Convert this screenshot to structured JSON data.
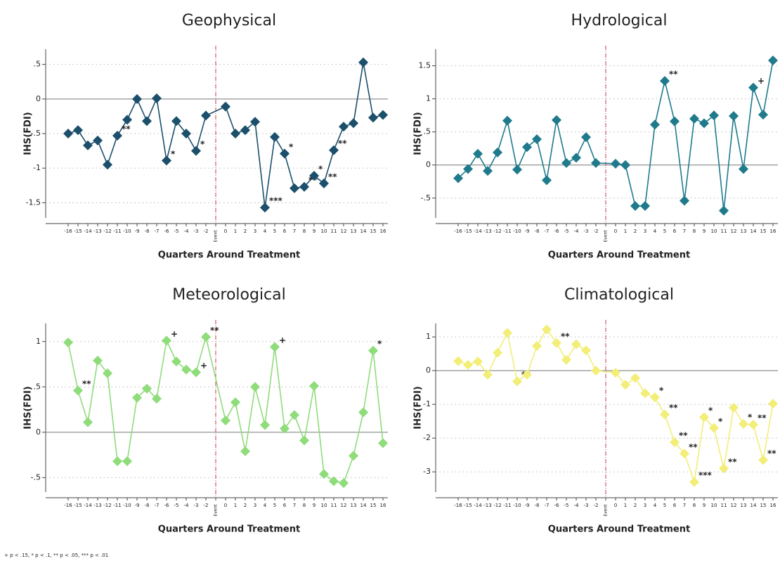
{
  "chart_data": [
    {
      "type": "line",
      "title": "Geophysical",
      "x_label": "Quarters Around Treatment",
      "y_label": "IHS(FDI)",
      "x": [
        -16,
        -15,
        -14,
        -13,
        -12,
        -11,
        -10,
        -9,
        -8,
        -7,
        -6,
        -5,
        -4,
        -3,
        -2,
        0,
        1,
        2,
        3,
        4,
        5,
        6,
        7,
        8,
        9,
        10,
        11,
        12,
        13,
        14,
        15,
        16
      ],
      "series": [
        {
          "name": "Geophysical",
          "color": "#1b4f6b",
          "values": [
            -0.5,
            -0.45,
            -0.67,
            -0.6,
            -0.95,
            -0.53,
            -0.3,
            0,
            -0.32,
            0.01,
            -0.89,
            -0.32,
            -0.5,
            -0.75,
            -0.24,
            -0.11,
            -0.5,
            -0.45,
            -0.33,
            -1.57,
            -0.55,
            -0.79,
            -1.29,
            -1.27,
            -1.11,
            -1.22,
            -0.74,
            -0.4,
            -0.35,
            0.53,
            -0.27,
            -0.23
          ],
          "value_labels": [
            null,
            null,
            null,
            null,
            null,
            "**",
            null,
            null,
            null,
            null,
            "*",
            null,
            null,
            "*",
            null,
            null,
            null,
            null,
            null,
            "***",
            null,
            "*",
            null,
            "**",
            "*",
            "**",
            "**",
            null,
            null,
            null,
            null,
            null
          ]
        }
      ],
      "xlim": [
        -16.5,
        16.5
      ],
      "xticks": [
        -16,
        -15,
        -14,
        -13,
        -12,
        -11,
        -10,
        -9,
        -8,
        -7,
        -6,
        -5,
        -4,
        -3,
        -2,
        {
          "value": -1,
          "label": "Event"
        },
        0,
        1,
        2,
        3,
        4,
        5,
        6,
        7,
        8,
        9,
        10,
        11,
        12,
        13,
        14,
        15,
        16
      ],
      "ylim": [
        -1.72,
        0.72
      ],
      "yticks": [
        {
          "value": -1.5,
          "label": "-1.5"
        },
        -1,
        {
          "value": -0.5,
          "label": "-.5"
        },
        0,
        {
          "value": 0.5,
          "label": ".5"
        }
      ],
      "grid": true
    },
    {
      "type": "line",
      "title": "Hydrological",
      "x_label": "Quarters Around Treatment",
      "y_label": "IHS(FDI)",
      "x": [
        -16,
        -15,
        -14,
        -13,
        -12,
        -11,
        -10,
        -9,
        -8,
        -7,
        -6,
        -5,
        -4,
        -3,
        -2,
        0,
        1,
        2,
        3,
        4,
        5,
        6,
        7,
        8,
        9,
        10,
        11,
        12,
        13,
        14,
        15,
        16
      ],
      "series": [
        {
          "name": "Hydrological",
          "color": "#1f7a8c",
          "values": [
            -0.2,
            -0.06,
            0.17,
            -0.09,
            0.19,
            0.67,
            -0.07,
            0.27,
            0.39,
            -0.23,
            0.68,
            0.03,
            0.11,
            0.42,
            0.03,
            0.02,
            0,
            -0.62,
            -0.62,
            0.61,
            1.27,
            0.66,
            -0.54,
            0.7,
            0.63,
            0.75,
            -0.69,
            0.74,
            -0.06,
            1.17,
            0.76,
            1.58
          ],
          "value_labels": [
            null,
            null,
            null,
            null,
            null,
            null,
            null,
            null,
            null,
            null,
            null,
            null,
            null,
            null,
            null,
            null,
            null,
            null,
            null,
            null,
            "**",
            null,
            null,
            null,
            null,
            null,
            null,
            null,
            null,
            "+",
            null,
            null
          ]
        }
      ],
      "xlim": [
        -16.5,
        16.5
      ],
      "xticks": [
        -16,
        -15,
        -14,
        -13,
        -12,
        -11,
        -10,
        -9,
        -8,
        -7,
        -6,
        -5,
        -4,
        -3,
        -2,
        {
          "value": -1,
          "label": "Event"
        },
        0,
        1,
        2,
        3,
        4,
        5,
        6,
        7,
        8,
        9,
        10,
        11,
        12,
        13,
        14,
        15,
        16
      ],
      "ylim": [
        -0.8,
        1.75
      ],
      "yticks": [
        {
          "value": -0.5,
          "label": "-.5"
        },
        0,
        {
          "value": 0.5,
          "label": ".5"
        },
        1,
        1.5
      ],
      "grid": true
    },
    {
      "type": "line",
      "title": "Meteorological",
      "x_label": "Quarters Around Treatment",
      "y_label": "IHS(FDI)",
      "x": [
        -16,
        -15,
        -14,
        -13,
        -12,
        -11,
        -10,
        -9,
        -8,
        -7,
        -6,
        -5,
        -4,
        -3,
        -2,
        0,
        1,
        2,
        3,
        4,
        5,
        6,
        7,
        8,
        9,
        10,
        11,
        12,
        13,
        14,
        15,
        16
      ],
      "series": [
        {
          "name": "Meteorological",
          "color": "#8fdc7a",
          "values": [
            0.99,
            0.46,
            0.11,
            0.79,
            0.65,
            -0.32,
            -0.32,
            0.38,
            0.48,
            0.37,
            1.01,
            0.78,
            0.69,
            0.66,
            1.05,
            0.13,
            0.33,
            -0.21,
            0.5,
            0.08,
            0.94,
            0.04,
            0.19,
            -0.09,
            0.51,
            -0.46,
            -0.54,
            -0.56,
            -0.26,
            0.22,
            0.9,
            -0.12
          ],
          "value_labels": [
            null,
            "**",
            null,
            null,
            null,
            null,
            null,
            null,
            null,
            null,
            "+",
            null,
            null,
            "+",
            "**",
            null,
            null,
            null,
            null,
            null,
            "+",
            null,
            null,
            null,
            null,
            null,
            null,
            null,
            null,
            null,
            "*",
            null
          ]
        }
      ],
      "xlim": [
        -16.5,
        16.5
      ],
      "xticks": [
        -16,
        -15,
        -14,
        -13,
        -12,
        -11,
        -10,
        -9,
        -8,
        -7,
        -6,
        -5,
        -4,
        -3,
        -2,
        {
          "value": -1,
          "label": "Event"
        },
        0,
        1,
        2,
        3,
        4,
        5,
        6,
        7,
        8,
        9,
        10,
        11,
        12,
        13,
        14,
        15,
        16
      ],
      "ylim": [
        -0.66,
        1.2
      ],
      "yticks": [
        {
          "value": -0.5,
          "label": "-.5"
        },
        0,
        {
          "value": 0.5,
          "label": ".5"
        },
        1
      ],
      "grid": true
    },
    {
      "type": "line",
      "title": "Climatological",
      "x_label": "Quarters Around Treatment",
      "y_label": "IHS(FDI)",
      "x": [
        -16,
        -15,
        -14,
        -13,
        -12,
        -11,
        -10,
        -9,
        -8,
        -7,
        -6,
        -5,
        -4,
        -3,
        -2,
        0,
        1,
        2,
        3,
        4,
        5,
        6,
        7,
        8,
        9,
        10,
        11,
        12,
        13,
        14,
        15,
        16
      ],
      "series": [
        {
          "name": "Climatological",
          "color": "#f2ee78",
          "values": [
            0.28,
            0.17,
            0.27,
            -0.12,
            0.53,
            1.12,
            -0.32,
            -0.12,
            0.73,
            1.22,
            0.82,
            0.32,
            0.78,
            0.6,
            0,
            -0.06,
            -0.42,
            -0.22,
            -0.67,
            -0.79,
            -1.3,
            -2.12,
            -2.46,
            -3.3,
            -1.38,
            -1.7,
            -2.9,
            -1.1,
            -1.58,
            -1.6,
            -2.65,
            -0.98
          ],
          "value_labels": [
            null,
            null,
            null,
            null,
            null,
            null,
            "**",
            null,
            null,
            null,
            "**",
            null,
            null,
            null,
            null,
            null,
            null,
            null,
            null,
            "*",
            "**",
            "**",
            "**",
            "***",
            "*",
            "*",
            "**",
            null,
            "*",
            "**",
            "**",
            null
          ]
        }
      ],
      "xlim": [
        -16.5,
        16.5
      ],
      "xticks": [
        -16,
        -15,
        -14,
        -13,
        -12,
        -11,
        -10,
        -9,
        -8,
        -7,
        -6,
        -5,
        -4,
        -3,
        -2,
        {
          "value": -1,
          "label": "Event"
        },
        0,
        1,
        2,
        3,
        4,
        5,
        6,
        7,
        8,
        9,
        10,
        11,
        12,
        13,
        14,
        15,
        16
      ],
      "ylim": [
        -3.6,
        1.4
      ],
      "yticks": [
        -3,
        -2,
        -1,
        0,
        1
      ],
      "grid": true
    }
  ],
  "footnote": "+ p < .15, * p < .1, ** p < .05, *** p < .01"
}
